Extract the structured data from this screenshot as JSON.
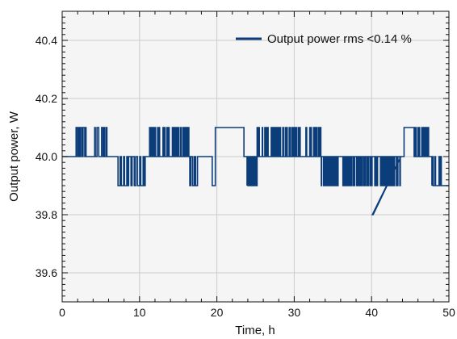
{
  "chart_data": {
    "type": "line",
    "title": "",
    "xlabel": "Time, h",
    "ylabel": "Output power, W",
    "xlim": [
      0,
      50
    ],
    "ylim": [
      39.5,
      40.5
    ],
    "xticks": [
      0,
      10,
      20,
      30,
      40,
      50
    ],
    "yticks": [
      39.6,
      39.8,
      40.0,
      40.2,
      40.4
    ],
    "ytick_labels": [
      "39.6",
      "39.8",
      "40.0",
      "40.2",
      "40.4"
    ],
    "grid": true,
    "legend_position": "top-right",
    "colors": {
      "series": "#0b3d7a",
      "plot_background": "#f5f5f5",
      "grid": "#cccccc"
    },
    "series": [
      {
        "name": "Output power rms <0.14 %",
        "segments": [
          {
            "from": 0.0,
            "to": 1.8,
            "value": 40.0
          },
          {
            "from": 1.8,
            "to": 6.0,
            "value": 40.0,
            "toggle": 40.1,
            "pulses": 14
          },
          {
            "from": 6.0,
            "to": 6.8,
            "value": 40.0
          },
          {
            "from": 6.8,
            "to": 11.0,
            "value": 40.0,
            "toggle": 39.9,
            "pulses": 10
          },
          {
            "from": 11.0,
            "to": 11.3,
            "value": 40.0
          },
          {
            "from": 11.3,
            "to": 16.5,
            "value": 40.0,
            "toggle": 40.1,
            "pulses": 30
          },
          {
            "from": 16.5,
            "to": 18.0,
            "value": 40.0,
            "toggle": 39.9,
            "pulses": 4
          },
          {
            "from": 18.0,
            "to": 19.4,
            "value": 40.0
          },
          {
            "from": 19.4,
            "to": 19.8,
            "value": 39.9
          },
          {
            "from": 19.8,
            "to": 23.5,
            "value": 40.1
          },
          {
            "from": 23.5,
            "to": 23.9,
            "value": 40.0
          },
          {
            "from": 23.9,
            "to": 25.2,
            "value": 39.9,
            "toggle": 40.0,
            "pulses": 6
          },
          {
            "from": 25.2,
            "to": 33.5,
            "value": 40.0,
            "toggle": 40.1,
            "pulses": 50
          },
          {
            "from": 33.5,
            "to": 43.8,
            "value": 40.0,
            "toggle": 39.9,
            "pulses": 70
          },
          {
            "from": 40.1,
            "to": 40.2,
            "value": 39.8
          },
          {
            "from": 43.8,
            "to": 44.2,
            "value": 40.0
          },
          {
            "from": 44.2,
            "to": 45.5,
            "value": 40.1
          },
          {
            "from": 45.5,
            "to": 47.8,
            "value": 40.0,
            "toggle": 40.1,
            "pulses": 14
          },
          {
            "from": 47.8,
            "to": 50.0,
            "value": 39.9,
            "toggle": 40.0,
            "pulses": 12
          }
        ]
      }
    ]
  }
}
